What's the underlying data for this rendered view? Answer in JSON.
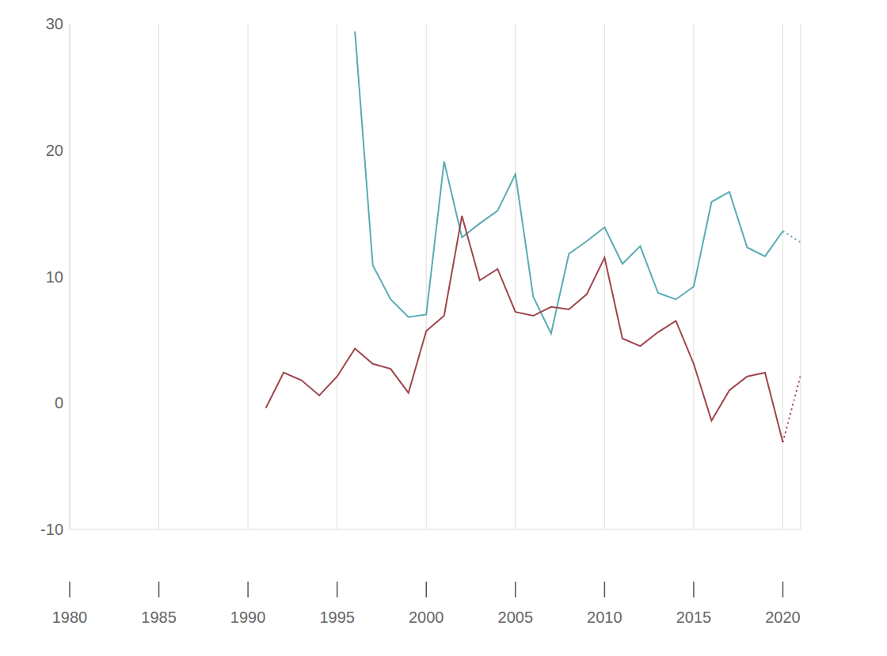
{
  "chart_data": {
    "type": "line",
    "x": [
      1991,
      1992,
      1993,
      1994,
      1995,
      1996,
      1997,
      1998,
      1999,
      2000,
      2001,
      2002,
      2003,
      2004,
      2005,
      2006,
      2007,
      2008,
      2009,
      2010,
      2011,
      2012,
      2013,
      2014,
      2015,
      2016,
      2017,
      2018,
      2019,
      2020,
      2021
    ],
    "series": [
      {
        "color": "#5aacb4",
        "line_style": "solid",
        "values": [
          null,
          null,
          null,
          null,
          null,
          29.4,
          10.9,
          8.2,
          6.8,
          7.0,
          19.1,
          13.1,
          14.2,
          15.2,
          18.1,
          8.4,
          5.5,
          11.8,
          12.8,
          13.9,
          11.0,
          12.4,
          8.7,
          8.2,
          9.2,
          15.9,
          16.7,
          12.3,
          11.6,
          13.6,
          null
        ]
      },
      {
        "color": "#a0454c",
        "line_style": "solid",
        "values": [
          -0.4,
          2.4,
          1.8,
          0.6,
          2.1,
          4.3,
          3.1,
          2.7,
          0.8,
          5.7,
          6.9,
          14.8,
          9.7,
          10.6,
          7.2,
          6.9,
          7.6,
          7.4,
          8.6,
          11.5,
          5.1,
          4.5,
          5.6,
          6.5,
          3.1,
          -1.4,
          1.0,
          2.1,
          2.4,
          -3.1,
          null
        ]
      },
      {
        "color": "#5aacb4",
        "line_style": "dotted",
        "values": [
          null,
          null,
          null,
          null,
          null,
          null,
          null,
          null,
          null,
          null,
          null,
          null,
          null,
          null,
          null,
          null,
          null,
          null,
          null,
          null,
          null,
          null,
          null,
          null,
          null,
          null,
          null,
          null,
          null,
          13.6,
          12.7
        ]
      },
      {
        "color": "#a0454c",
        "line_style": "dotted",
        "values": [
          null,
          null,
          null,
          null,
          null,
          null,
          null,
          null,
          null,
          null,
          null,
          null,
          null,
          null,
          null,
          null,
          null,
          null,
          null,
          null,
          null,
          null,
          null,
          null,
          null,
          null,
          null,
          null,
          null,
          -3.1,
          2.2
        ]
      }
    ],
    "xlim": [
      1980,
      2021
    ],
    "xticks": [
      1980,
      1985,
      1990,
      1995,
      2000,
      2005,
      2010,
      2015,
      2020
    ],
    "ylim": [
      -10,
      30
    ],
    "yticks": [
      -10,
      0,
      10,
      20,
      30
    ],
    "grid": true
  }
}
